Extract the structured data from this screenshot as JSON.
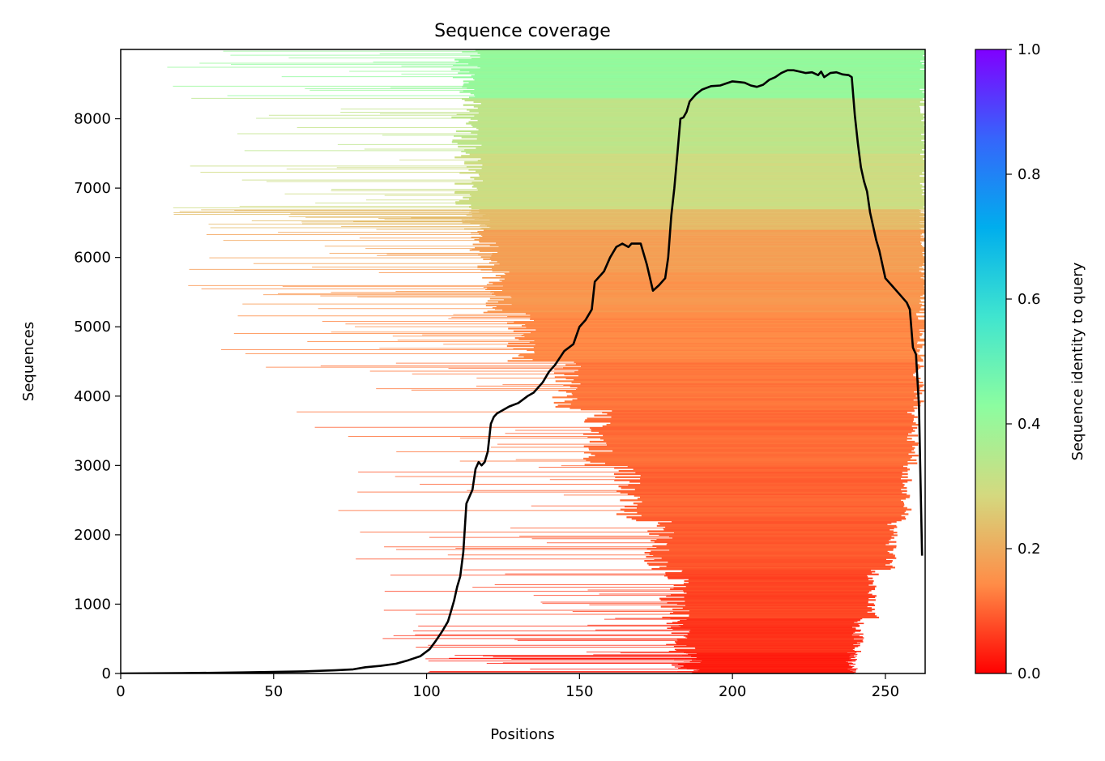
{
  "chart_data": {
    "type": "heatmap",
    "title": "Sequence coverage",
    "xlabel": "Positions",
    "ylabel": "Sequences",
    "xlim": [
      0,
      263
    ],
    "ylim": [
      0,
      9000
    ],
    "xticks": [
      0,
      50,
      100,
      150,
      200,
      250
    ],
    "yticks": [
      0,
      1000,
      2000,
      3000,
      4000,
      5000,
      6000,
      7000,
      8000
    ],
    "grid": false,
    "colorbar": {
      "label": "Sequence identity to query",
      "colormap": "rainbow_r",
      "range": [
        0,
        1
      ],
      "ticks": [
        0.0,
        0.2,
        0.4,
        0.6,
        0.8,
        1.0
      ],
      "colors": [
        "#ff0000",
        "#ff8c47",
        "#d4d97f",
        "#8cfda0",
        "#40e5cf",
        "#00aeed",
        "#3665fb",
        "#8000ff"
      ]
    },
    "heatmap_bands": [
      {
        "y0": 0,
        "y1": 300,
        "identity": 0.03,
        "start": 184,
        "end": 239
      },
      {
        "y0": 300,
        "y1": 800,
        "identity": 0.05,
        "start": 182,
        "end": 241
      },
      {
        "y0": 800,
        "y1": 1500,
        "identity": 0.07,
        "start": 180,
        "end": 246
      },
      {
        "y0": 1500,
        "y1": 2200,
        "identity": 0.09,
        "start": 175,
        "end": 252
      },
      {
        "y0": 2200,
        "y1": 3000,
        "identity": 0.1,
        "start": 165,
        "end": 257
      },
      {
        "y0": 3000,
        "y1": 3800,
        "identity": 0.11,
        "start": 155,
        "end": 259
      },
      {
        "y0": 3800,
        "y1": 4500,
        "identity": 0.12,
        "start": 145,
        "end": 261
      },
      {
        "y0": 4500,
        "y1": 5200,
        "identity": 0.14,
        "start": 130,
        "end": 262
      },
      {
        "y0": 5200,
        "y1": 5800,
        "identity": 0.16,
        "start": 122,
        "end": 263
      },
      {
        "y0": 5800,
        "y1": 6400,
        "identity": 0.18,
        "start": 118,
        "end": 263
      },
      {
        "y0": 6400,
        "y1": 6700,
        "identity": 0.23,
        "start": 115,
        "end": 263
      },
      {
        "y0": 6700,
        "y1": 7500,
        "identity": 0.3,
        "start": 113,
        "end": 263
      },
      {
        "y0": 7500,
        "y1": 8300,
        "identity": 0.33,
        "start": 112,
        "end": 263
      },
      {
        "y0": 8300,
        "y1": 9000,
        "identity": 0.41,
        "start": 112,
        "end": 263
      }
    ],
    "series": [
      {
        "type": "line",
        "color": "#000000",
        "x": [
          0,
          20,
          40,
          60,
          70,
          76,
          80,
          85,
          90,
          94,
          98,
          101,
          103,
          105,
          107,
          108,
          109,
          110,
          111,
          112,
          113,
          115,
          116,
          117,
          118,
          119,
          120,
          121,
          122,
          123,
          125,
          127,
          130,
          133,
          135,
          138,
          140,
          142,
          145,
          148,
          150,
          152,
          154,
          155,
          156,
          157,
          158,
          160,
          162,
          164,
          166,
          167,
          168,
          170,
          172,
          174,
          176,
          178,
          179,
          180,
          181,
          182,
          183,
          184,
          185,
          186,
          188,
          190,
          193,
          196,
          198,
          200,
          202,
          204,
          206,
          208,
          210,
          212,
          214,
          216,
          218,
          220,
          222,
          224,
          226,
          228,
          229,
          230,
          232,
          234,
          236,
          238,
          239,
          240,
          241,
          242,
          243,
          244,
          245,
          246,
          247,
          248,
          250,
          252,
          255,
          257,
          258,
          259,
          260,
          261,
          262
        ],
        "y": [
          0,
          5,
          15,
          30,
          45,
          60,
          90,
          110,
          140,
          190,
          250,
          350,
          470,
          600,
          750,
          900,
          1050,
          1250,
          1400,
          1750,
          2450,
          2650,
          2950,
          3050,
          3000,
          3050,
          3200,
          3600,
          3700,
          3750,
          3800,
          3850,
          3900,
          4000,
          4050,
          4200,
          4350,
          4450,
          4650,
          4750,
          5000,
          5100,
          5250,
          5650,
          5700,
          5750,
          5800,
          6000,
          6150,
          6200,
          6150,
          6200,
          6200,
          6200,
          5900,
          5520,
          5600,
          5700,
          6000,
          6600,
          7000,
          7500,
          8000,
          8020,
          8100,
          8250,
          8350,
          8420,
          8470,
          8480,
          8510,
          8540,
          8530,
          8520,
          8480,
          8460,
          8490,
          8560,
          8600,
          8660,
          8700,
          8700,
          8680,
          8660,
          8670,
          8630,
          8680,
          8600,
          8660,
          8670,
          8640,
          8630,
          8600,
          8050,
          7650,
          7300,
          7100,
          6950,
          6650,
          6450,
          6250,
          6100,
          5700,
          5600,
          5450,
          5350,
          5250,
          4700,
          4600,
          3850,
          1700
        ]
      }
    ]
  }
}
